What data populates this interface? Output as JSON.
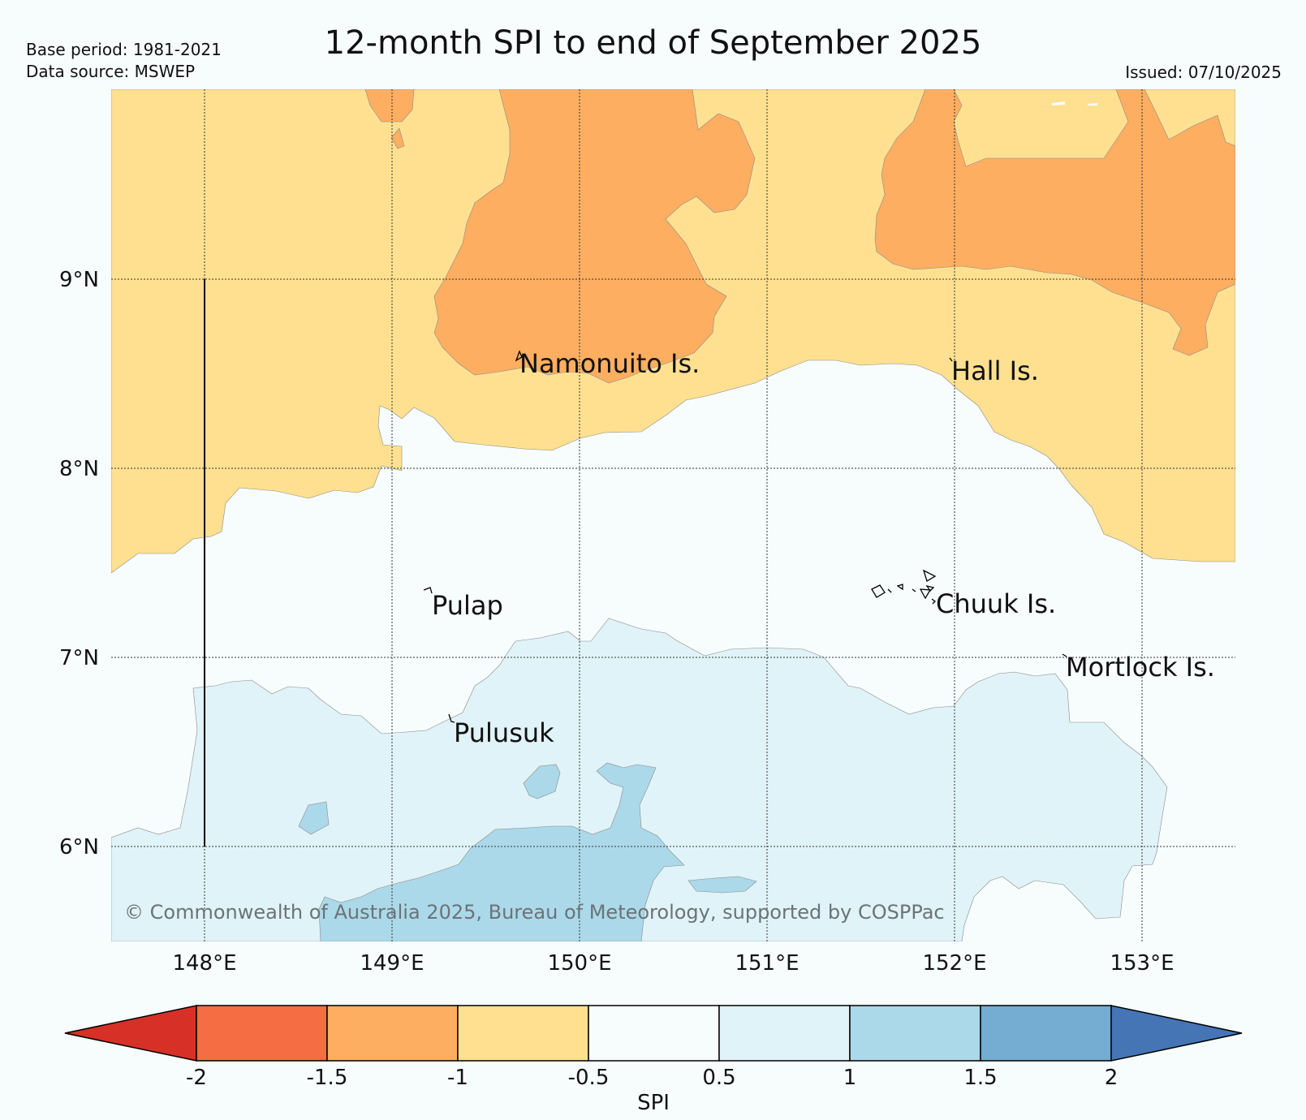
{
  "header": {
    "title": "12-month SPI to end of September 2025",
    "base_period": "Base period: 1981-2021",
    "data_source": "Data source: MSWEP",
    "issued": "Issued: 07/10/2025"
  },
  "map": {
    "lon_range": [
      147.5,
      153.5
    ],
    "lat_range": [
      5.5,
      10.0
    ],
    "grid": true,
    "lon_ticks": [
      {
        "value": 148,
        "label": "148°E"
      },
      {
        "value": 149,
        "label": "149°E"
      },
      {
        "value": 150,
        "label": "150°E"
      },
      {
        "value": 151,
        "label": "151°E"
      },
      {
        "value": 152,
        "label": "152°E"
      },
      {
        "value": 153,
        "label": "153°E"
      }
    ],
    "lat_ticks": [
      {
        "value": 9,
        "label": "9°N"
      },
      {
        "value": 8,
        "label": "8°N"
      },
      {
        "value": 7,
        "label": "7°N"
      },
      {
        "value": 6,
        "label": "6°N"
      }
    ],
    "places": [
      {
        "name": "Namonuito Is.",
        "lon": 149.68,
        "lat": 8.55
      },
      {
        "name": "Hall Is.",
        "lon": 151.98,
        "lat": 8.5
      },
      {
        "name": "Pulap",
        "lon": 149.32,
        "lat": 7.27
      },
      {
        "name": "Chuuk Is.",
        "lon": 151.78,
        "lat": 7.28
      },
      {
        "name": "Mortlock Is.",
        "lon": 152.63,
        "lat": 6.94
      },
      {
        "name": "Pulusuk",
        "lon": 149.44,
        "lat": 6.6
      }
    ],
    "copyright": "© Commonwealth of Australia 2025, Bureau of Meteorology, supported by COSPPac"
  },
  "colorbar": {
    "label": "SPI",
    "ticks": [
      "-2",
      "-1.5",
      "-1",
      "-0.5",
      "0.5",
      "1",
      "1.5",
      "2"
    ],
    "colors": [
      "#f46d43",
      "#fdae61",
      "#fee090",
      "#f7fcfd",
      "#e0f3f8",
      "#abd9e9",
      "#74add1"
    ],
    "under_color": "#d73027",
    "over_color": "#4575b4"
  }
}
